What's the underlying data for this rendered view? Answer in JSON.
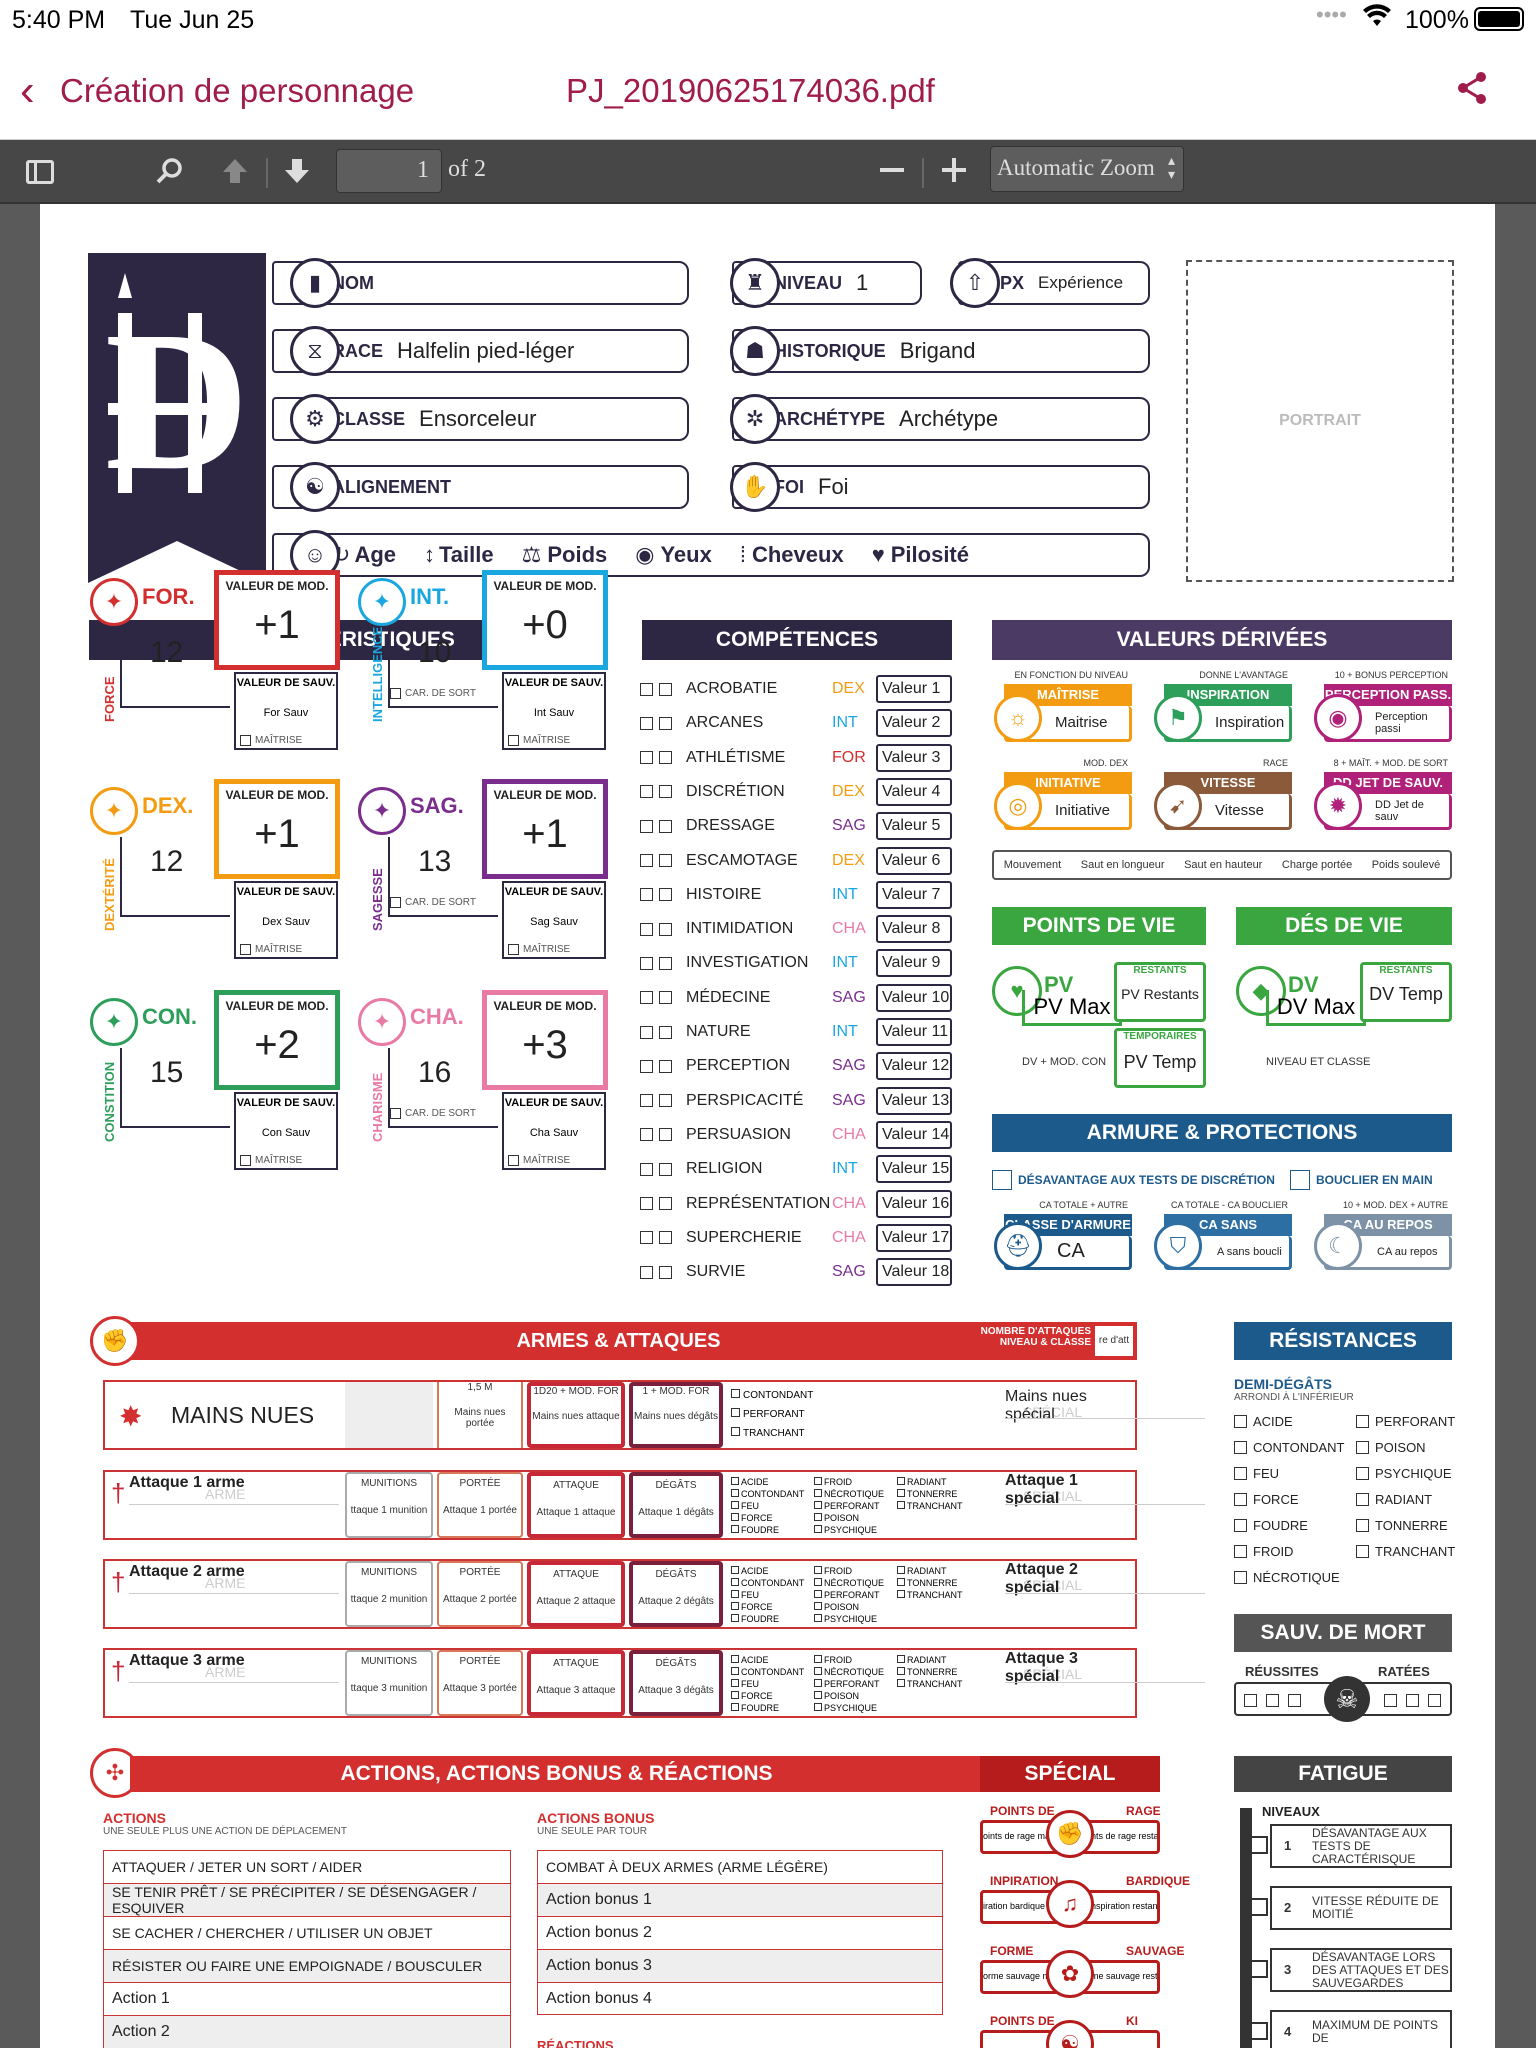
{
  "status_bar": {
    "time": "5:40 PM",
    "date": "Tue Jun 25",
    "battery": "100%"
  },
  "nav": {
    "back_label": "Création de personnage",
    "title": "PJ_20190625174036.pdf"
  },
  "toolbar": {
    "page_number": "1",
    "page_total": "of 2",
    "zoom_label": "Automatic Zoom"
  },
  "sheet": {
    "identity": {
      "nom_label": "NOM",
      "nom_value": "",
      "niveau_label": "NIVEAU",
      "niveau_value": "1",
      "px_label": "PX",
      "px_value": "Expérience",
      "race_label": "RACE",
      "race_value": "Halfelin pied-léger",
      "historique_label": "HISTORIQUE",
      "historique_value": "Brigand",
      "classe_label": "CLASSE",
      "classe_value": "Ensorceleur",
      "archetype_label": "ARCHÉTYPE",
      "archetype_value": "Archétype",
      "alignement_label": "ALIGNEMENT",
      "alignement_value": "",
      "foi_label": "FOI",
      "foi_value": "Foi",
      "age": "Age",
      "taille": "Taille",
      "poids": "Poids",
      "yeux": "Yeux",
      "cheveux": "Cheveux",
      "pilosite": "Pilosité",
      "portrait": "PORTRAIT"
    },
    "sections": {
      "caracteristiques": "CARACTÉRISTIQUES",
      "competences": "COMPÉTENCES",
      "valeurs_derivees": "VALEURS DÉRIVÉES",
      "points_de_vie": "POINTS DE VIE",
      "des_de_vie": "DÉS DE VIE",
      "armure": "ARMURE & PROTECTIONS",
      "armes": "ARMES & ATTAQUES",
      "resistances": "RÉSISTANCES",
      "sauv_mort": "SAUV. DE MORT",
      "actions": "ACTIONS, ACTIONS BONUS & RÉACTIONS",
      "special": "SPÉCIAL",
      "fatigue": "FATIGUE"
    },
    "labels": {
      "valeur_mod": "VALEUR DE MOD.",
      "valeur_sauv": "VALEUR DE SAUV.",
      "maitrise": "MAÎTRISE",
      "car_de_sort": "CAR. DE SORT"
    },
    "stats": [
      {
        "abbr": "FOR.",
        "full": "FORCE",
        "score": "12",
        "mod": "+1",
        "save": "For Sauv",
        "color": "#d32f2f"
      },
      {
        "abbr": "INT.",
        "full": "INTELLIGENCE",
        "score": "10",
        "mod": "+0",
        "save": "Int Sauv",
        "color": "#1aa7e0"
      },
      {
        "abbr": "DEX.",
        "full": "DEXTÉRITÉ",
        "score": "12",
        "mod": "+1",
        "save": "Dex Sauv",
        "color": "#f39c12"
      },
      {
        "abbr": "SAG.",
        "full": "SAGESSE",
        "score": "13",
        "mod": "+1",
        "save": "Sag Sauv",
        "color": "#7b2d8e"
      },
      {
        "abbr": "CON.",
        "full": "CONSTITION",
        "score": "15",
        "mod": "+2",
        "save": "Con Sauv",
        "color": "#2e9e5b"
      },
      {
        "abbr": "CHA.",
        "full": "CHARISME",
        "score": "16",
        "mod": "+3",
        "save": "Cha Sauv",
        "color": "#e87aa4"
      }
    ],
    "skills": [
      {
        "name": "ACROBATIE",
        "attr": "DEX",
        "value": "Valeur 1",
        "color": "#f39c12"
      },
      {
        "name": "ARCANES",
        "attr": "INT",
        "value": "Valeur 2",
        "color": "#1aa7e0"
      },
      {
        "name": "ATHLÉTISME",
        "attr": "FOR",
        "value": "Valeur 3",
        "color": "#d32f2f"
      },
      {
        "name": "DISCRÉTION",
        "attr": "DEX",
        "value": "Valeur 4",
        "color": "#f39c12"
      },
      {
        "name": "DRESSAGE",
        "attr": "SAG",
        "value": "Valeur 5",
        "color": "#7b2d8e"
      },
      {
        "name": "ESCAMOTAGE",
        "attr": "DEX",
        "value": "Valeur 6",
        "color": "#f39c12"
      },
      {
        "name": "HISTOIRE",
        "attr": "INT",
        "value": "Valeur 7",
        "color": "#1aa7e0"
      },
      {
        "name": "INTIMIDATION",
        "attr": "CHA",
        "value": "Valeur 8",
        "color": "#e87aa4"
      },
      {
        "name": "INVESTIGATION",
        "attr": "INT",
        "value": "Valeur 9",
        "color": "#1aa7e0"
      },
      {
        "name": "MÉDECINE",
        "attr": "SAG",
        "value": "Valeur 10",
        "color": "#7b2d8e"
      },
      {
        "name": "NATURE",
        "attr": "INT",
        "value": "Valeur 11",
        "color": "#1aa7e0"
      },
      {
        "name": "PERCEPTION",
        "attr": "SAG",
        "value": "Valeur 12",
        "color": "#7b2d8e"
      },
      {
        "name": "PERSPICACITÉ",
        "attr": "SAG",
        "value": "Valeur 13",
        "color": "#7b2d8e"
      },
      {
        "name": "PERSUASION",
        "attr": "CHA",
        "value": "Valeur 14",
        "color": "#e87aa4"
      },
      {
        "name": "RELIGION",
        "attr": "INT",
        "value": "Valeur 15",
        "color": "#1aa7e0"
      },
      {
        "name": "REPRÉSENTATION",
        "attr": "CHA",
        "value": "Valeur 16",
        "color": "#e87aa4"
      },
      {
        "name": "SUPERCHERIE",
        "attr": "CHA",
        "value": "Valeur 17",
        "color": "#e87aa4"
      },
      {
        "name": "SURVIE",
        "attr": "SAG",
        "value": "Valeur 18",
        "color": "#7b2d8e"
      }
    ],
    "derived": [
      {
        "caption": "EN FONCTION DU NIVEAU",
        "title": "MAÎTRISE",
        "value": "Maitrise",
        "color": "#f39c12"
      },
      {
        "caption": "DONNE L'AVANTAGE",
        "title": "INSPIRATION",
        "value": "Inspiration",
        "color": "#2e9e5b"
      },
      {
        "caption": "10 + BONUS PERCEPTION",
        "title": "PERCEPTION PASS.",
        "value": "Perception passi",
        "color": "#b0227a"
      },
      {
        "caption": "MOD. DEX",
        "title": "INITIATIVE",
        "value": "Initiative",
        "color": "#f39c12"
      },
      {
        "caption": "RACE",
        "title": "VITESSE",
        "value": "Vitesse",
        "color": "#8a5a3a"
      },
      {
        "caption": "8 + MAÎT. + MOD. DE SORT",
        "title": "DD JET DE SAUV.",
        "value": "DD Jet de sauv",
        "color": "#b0227a"
      }
    ],
    "movement": [
      "Mouvement",
      "Saut en longueur",
      "Saut en hauteur",
      "Charge portée",
      "Poids soulevé"
    ],
    "pv": {
      "label": "PV",
      "max": "PV Max",
      "restants_label": "RESTANTS",
      "restants": "PV Restants",
      "temp_label": "TEMPORAIRES",
      "temp": "PV Temp",
      "caption": "DV + MOD. CON"
    },
    "dv": {
      "label": "DV",
      "max": "DV Max",
      "restants_label": "RESTANTS",
      "temp": "DV Temp",
      "caption": "NIVEAU ET CLASSE"
    },
    "armor": {
      "desavantage": "DÉSAVANTAGE AUX TESTS DE DISCRÉTION",
      "bouclier": "BOUCLIER EN MAIN",
      "boxes": [
        {
          "caption": "CA TOTALE + AUTRE",
          "title": "CLASSE D'ARMURE",
          "value": "CA",
          "color": "#1d5a8c"
        },
        {
          "caption": "CA TOTALE - CA BOUCLIER",
          "title": "CA SANS BOUCLIER",
          "value": "A sans boucli",
          "color": "#2d6ea3"
        },
        {
          "caption": "10 + MOD. DEX + AUTRE",
          "title": "CA AU REPOS",
          "value": "CA au repos",
          "color": "#7d92a6"
        }
      ]
    },
    "weapons": {
      "nb_attacks_label": "NOMBRE D'ATTAQUES",
      "nb_attacks_sub": "NIVEAU & CLASSE",
      "nb_attacks_value": "re d'att",
      "mains_nues": {
        "name": "MAINS NUES",
        "range_label": "1,5 M",
        "range": "Mains nues portée",
        "atk_label": "1D20 + MOD. FOR",
        "atk": "Mains nues attaque",
        "dmg_label": "1 + MOD. FOR",
        "dmg": "Mains nues dégâts",
        "types": [
          "CONTONDANT",
          "PERFORANT",
          "TRANCHANT"
        ],
        "special": "Mains nues spécial",
        "special_label": "SPÉCIAL"
      },
      "col_labels": {
        "munitions": "MUNITIONS",
        "portee": "PORTÉE",
        "attaque": "ATTAQUE",
        "degats": "DÉGÂTS",
        "arme": "ARME",
        "special": "SPÉCIAL"
      },
      "damage_types": [
        "ACIDE",
        "CONTONDANT",
        "FEU",
        "FORCE",
        "FOUDRE",
        "FROID",
        "NÉCROTIQUE",
        "PERFORANT",
        "POISON",
        "PSYCHIQUE",
        "RADIANT",
        "TONNERRE",
        "TRANCHANT"
      ],
      "rows": [
        {
          "name": "Attaque 1 arme",
          "mun": "ttaque 1 munition",
          "range": "Attaque 1 portée",
          "atk": "Attaque 1 attaque",
          "dmg": "Attaque 1 dégâts",
          "special": "Attaque 1 spécial"
        },
        {
          "name": "Attaque 2 arme",
          "mun": "ttaque 2 munition",
          "range": "Attaque 2 portée",
          "atk": "Attaque 2 attaque",
          "dmg": "Attaque 2 dégâts",
          "special": "Attaque 2 spécial"
        },
        {
          "name": "Attaque 3 arme",
          "mun": "ttaque 3 munition",
          "range": "Attaque 3 portée",
          "atk": "Attaque 3 attaque",
          "dmg": "Attaque 3 dégâts",
          "special": "Attaque 3 spécial"
        }
      ]
    },
    "resistances": {
      "title": "DEMI-DÉGÂTS",
      "sub": "ARRONDI À L'INFÉRIEUR",
      "left": [
        "ACIDE",
        "CONTONDANT",
        "FEU",
        "FORCE",
        "FOUDRE",
        "FROID",
        "NÉCROTIQUE"
      ],
      "right": [
        "PERFORANT",
        "POISON",
        "PSYCHIQUE",
        "RADIANT",
        "TONNERRE",
        "TRANCHANT"
      ]
    },
    "death": {
      "success": "RÉUSSITES",
      "fail": "RATÉES"
    },
    "actions": {
      "title": "ACTIONS",
      "sub": "UNE SEULE PLUS UNE ACTION DE DÉPLACEMENT",
      "items": [
        "ATTAQUER / JETER UN SORT / AIDER",
        "SE TENIR PRÊT / SE PRÉCIPITER / SE DÉSENGAGER / ESQUIVER",
        "SE CACHER / CHERCHER / UTILISER UN OBJET",
        "RÉSISTER OU FAIRE UNE EMPOIGNADE / BOUSCULER",
        "Action 1",
        "Action 2"
      ],
      "bonus_title": "ACTIONS BONUS",
      "bonus_sub": "UNE SEULE PAR TOUR",
      "bonus_items": [
        "COMBAT À DEUX ARMES (ARME LÉGÈRE)",
        "Action bonus 1",
        "Action bonus 2",
        "Action bonus 3",
        "Action bonus 4"
      ],
      "reactions_title": "RÉACTIONS"
    },
    "special": [
      {
        "left": "POINTS DE",
        "right": "RAGE",
        "v1": "oints de rage ma",
        "v2": "nts de rage resta"
      },
      {
        "left": "INPIRATION",
        "right": "BARDIQUE",
        "v1": "iration bardique",
        "v2": "nspiration restan"
      },
      {
        "left": "FORME",
        "right": "SAUVAGE",
        "v1": "orme sauvage ma",
        "v2": "me sauvage resta"
      },
      {
        "left": "POINTS DE",
        "right": "KI",
        "v1": "",
        "v2": ""
      }
    ],
    "fatigue": {
      "niveaux": "NIVEAUX",
      "items": [
        {
          "n": "1",
          "text": "DÉSAVANTAGE AUX TESTS DE CARACTÉRISQUE"
        },
        {
          "n": "2",
          "text": "VITESSE RÉDUITE DE MOITIÉ"
        },
        {
          "n": "3",
          "text": "DÉSAVANTAGE LORS DES ATTAQUES ET DES SAUVEGARDES"
        },
        {
          "n": "4",
          "text": "MAXIMUM DE POINTS DE"
        }
      ]
    }
  }
}
